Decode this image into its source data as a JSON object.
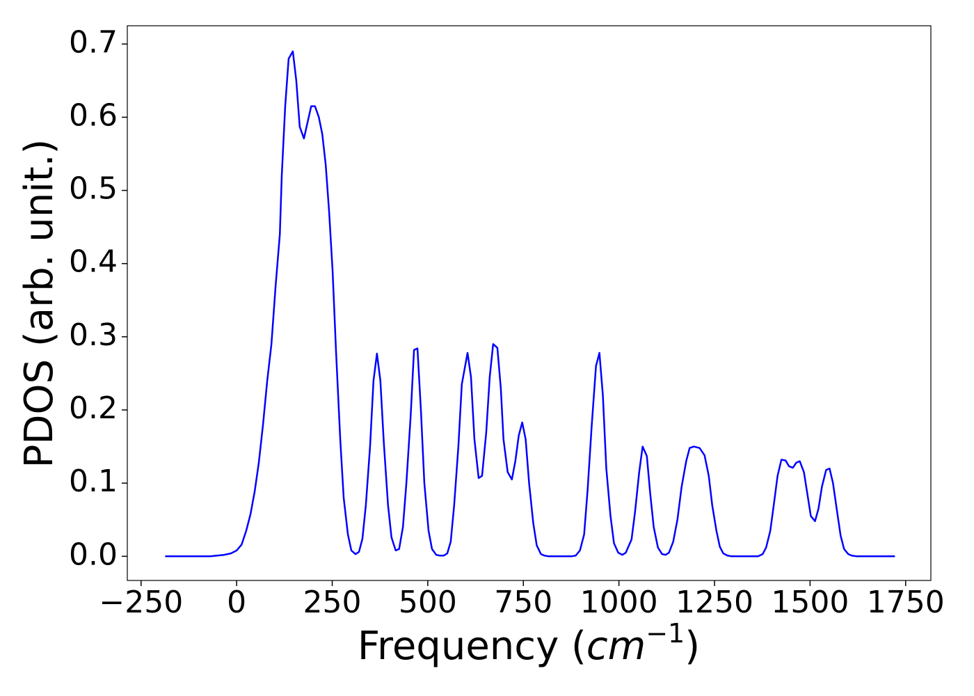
{
  "chart_data": {
    "type": "line",
    "xlabel": [
      "Frequency (",
      "cm",
      "−1",
      ")"
    ],
    "ylabel": "PDOS (arb. unit.)",
    "xlim": [
      -286,
      1816
    ],
    "ylim": [
      -0.033,
      0.725
    ],
    "xticks": [
      {
        "value": -250,
        "label": "−250"
      },
      0,
      250,
      500,
      750,
      1000,
      1250,
      1500,
      1750
    ],
    "yticks": [
      {
        "value": 0,
        "label": "0.0"
      },
      0.1,
      0.2,
      0.3,
      0.4,
      0.5,
      0.6,
      0.7
    ],
    "grid": false,
    "series": [
      {
        "color": "#0000ff",
        "x": [
          -187,
          -69,
          -51,
          -33,
          -15,
          0,
          13,
          25,
          36,
          47,
          58,
          69,
          80,
          91,
          102,
          113,
          118,
          127,
          136,
          147,
          156,
          165,
          176,
          195,
          205,
          215,
          224,
          233,
          242,
          251,
          260,
          271,
          280,
          291,
          300,
          311,
          320,
          329,
          338,
          349,
          358,
          367,
          376,
          385,
          396,
          405,
          416,
          425,
          435,
          444,
          455,
          464,
          473,
          482,
          491,
          502,
          511,
          522,
          531,
          542,
          551,
          560,
          569,
          580,
          589,
          604,
          613,
          622,
          633,
          642,
          653,
          662,
          671,
          682,
          691,
          698,
          709,
          720,
          729,
          738,
          747,
          756,
          765,
          776,
          785,
          796,
          805,
          816,
          876,
          887,
          898,
          909,
          918,
          929,
          940,
          949,
          958,
          967,
          978,
          987,
          998,
          1009,
          1018,
          1033,
          1042,
          1053,
          1062,
          1073,
          1082,
          1091,
          1102,
          1113,
          1122,
          1131,
          1142,
          1153,
          1164,
          1176,
          1185,
          1196,
          1211,
          1224,
          1235,
          1244,
          1255,
          1264,
          1273,
          1284,
          1295,
          1364,
          1376,
          1385,
          1396,
          1405,
          1415,
          1425,
          1436,
          1445,
          1455,
          1464,
          1473,
          1484,
          1493,
          1502,
          1513,
          1522,
          1531,
          1542,
          1551,
          1560,
          1571,
          1580,
          1589,
          1600,
          1609,
          1622,
          1722
        ],
        "values": [
          0,
          0,
          0.001,
          0.002,
          0.004,
          0.008,
          0.016,
          0.035,
          0.057,
          0.088,
          0.128,
          0.18,
          0.24,
          0.29,
          0.37,
          0.44,
          0.52,
          0.615,
          0.68,
          0.69,
          0.65,
          0.587,
          0.571,
          0.615,
          0.615,
          0.6,
          0.577,
          0.535,
          0.47,
          0.39,
          0.28,
          0.16,
          0.08,
          0.03,
          0.008,
          0.003,
          0.006,
          0.024,
          0.07,
          0.15,
          0.24,
          0.277,
          0.24,
          0.155,
          0.07,
          0.026,
          0.008,
          0.01,
          0.04,
          0.1,
          0.19,
          0.282,
          0.284,
          0.2,
          0.1,
          0.035,
          0.01,
          0.002,
          0.001,
          0.001,
          0.004,
          0.02,
          0.07,
          0.15,
          0.235,
          0.278,
          0.245,
          0.16,
          0.107,
          0.11,
          0.17,
          0.245,
          0.29,
          0.285,
          0.23,
          0.16,
          0.115,
          0.105,
          0.13,
          0.165,
          0.183,
          0.16,
          0.1,
          0.045,
          0.015,
          0.003,
          0.001,
          0,
          0,
          0.001,
          0.008,
          0.03,
          0.09,
          0.18,
          0.26,
          0.278,
          0.22,
          0.12,
          0.055,
          0.018,
          0.005,
          0.002,
          0.005,
          0.023,
          0.06,
          0.115,
          0.15,
          0.137,
          0.085,
          0.04,
          0.012,
          0.003,
          0.002,
          0.005,
          0.02,
          0.05,
          0.095,
          0.13,
          0.148,
          0.15,
          0.148,
          0.138,
          0.11,
          0.07,
          0.035,
          0.013,
          0.004,
          0.001,
          0,
          0,
          0.003,
          0.012,
          0.035,
          0.07,
          0.11,
          0.132,
          0.131,
          0.123,
          0.121,
          0.128,
          0.13,
          0.115,
          0.085,
          0.055,
          0.048,
          0.065,
          0.095,
          0.118,
          0.12,
          0.1,
          0.06,
          0.028,
          0.01,
          0.003,
          0.001,
          0,
          0
        ]
      }
    ]
  }
}
